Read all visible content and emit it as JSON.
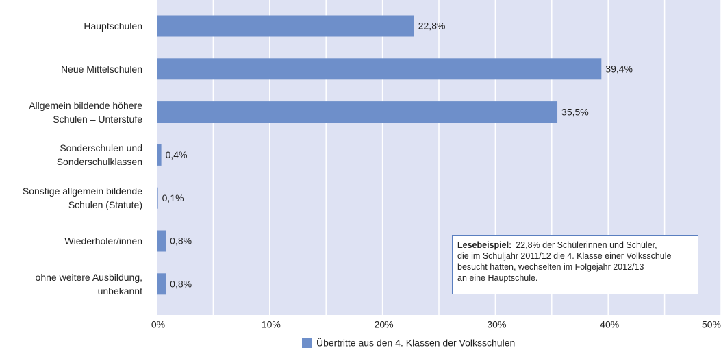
{
  "chart_data": {
    "type": "bar",
    "orientation": "horizontal",
    "categories": [
      "Hauptschulen",
      "Neue Mittelschulen",
      "Allgemein bildende höhere Schulen – Unterstufe",
      "Sonderschulen und Sonderschulklassen",
      "Sonstige allgemein bildende Schulen (Statute)",
      "Wiederholer/innen",
      "ohne weitere Ausbildung, unbekannt"
    ],
    "series": [
      {
        "name": "Übertritte aus den 4. Klassen der Volksschulen",
        "color": "#6e8fca",
        "values": [
          22.8,
          39.4,
          35.5,
          0.4,
          0.1,
          0.8,
          0.8
        ],
        "value_labels": [
          "22,8%",
          "39,4%",
          "35,5%",
          "0,4%",
          "0,1%",
          "0,8%",
          "0,8%"
        ]
      }
    ],
    "xlim": [
      0,
      50
    ],
    "xticks": [
      {
        "value": 0,
        "label": "0%"
      },
      {
        "value": 10,
        "label": "10%"
      },
      {
        "value": 20,
        "label": "20%"
      },
      {
        "value": 30,
        "label": "30%"
      },
      {
        "value": 40,
        "label": "40%"
      },
      {
        "value": 50,
        "label": "50%"
      }
    ],
    "xminorticks": [
      5,
      15,
      25,
      35,
      45
    ],
    "grid": true,
    "legend": "bottom",
    "annotation": {
      "title": "Lesebeispiel:",
      "lines": [
        "22,8% der Schülerinnen und Schüler,",
        "die im Schuljahr 2011/12 die 4. Klasse einer Volksschule",
        "besucht hatten, wechselten im Folgejahr 2012/13",
        "an eine Hauptschule."
      ]
    }
  }
}
